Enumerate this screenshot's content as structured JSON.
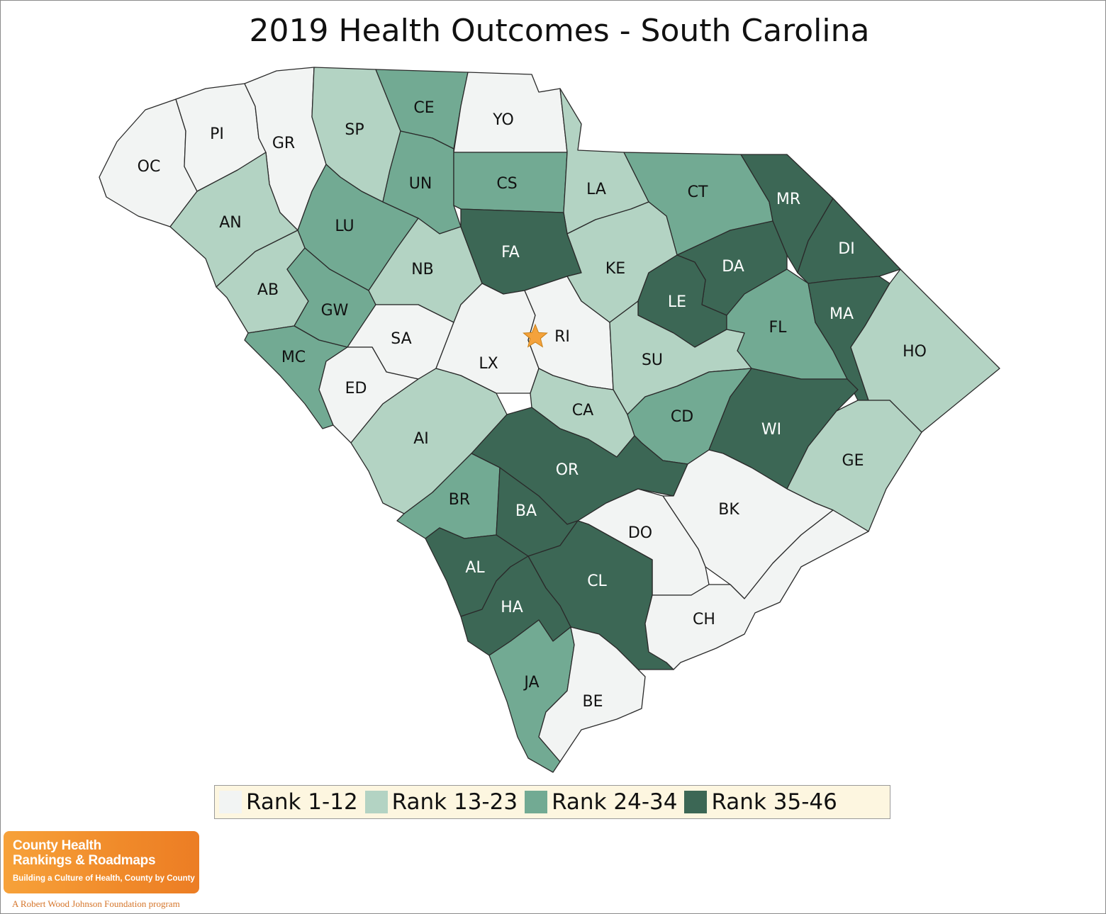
{
  "title": "2019 Health Outcomes - South Carolina",
  "colors": {
    "rank_1_12": "#f2f4f3",
    "rank_13_23": "#b3d3c3",
    "rank_24_34": "#72aa93",
    "rank_35_46": "#3c6755",
    "outline": "#2a2a2a",
    "legend_bg": "#fdf6e0",
    "capital_star": "#f4a23c"
  },
  "legend": [
    {
      "label": "Rank 1-12",
      "color": "#f2f4f3"
    },
    {
      "label": "Rank 13-23",
      "color": "#b3d3c3"
    },
    {
      "label": "Rank 24-34",
      "color": "#72aa93"
    },
    {
      "label": "Rank 35-46",
      "color": "#3c6755"
    }
  ],
  "capital": {
    "county": "RI",
    "icon": "star-icon"
  },
  "counties": [
    {
      "code": "OC",
      "rank_group": "Rank 1-12"
    },
    {
      "code": "PI",
      "rank_group": "Rank 1-12"
    },
    {
      "code": "GR",
      "rank_group": "Rank 1-12"
    },
    {
      "code": "SP",
      "rank_group": "Rank 13-23"
    },
    {
      "code": "CE",
      "rank_group": "Rank 24-34"
    },
    {
      "code": "YO",
      "rank_group": "Rank 1-12"
    },
    {
      "code": "AN",
      "rank_group": "Rank 13-23"
    },
    {
      "code": "LU",
      "rank_group": "Rank 24-34"
    },
    {
      "code": "UN",
      "rank_group": "Rank 24-34"
    },
    {
      "code": "CS",
      "rank_group": "Rank 24-34"
    },
    {
      "code": "LA",
      "rank_group": "Rank 13-23"
    },
    {
      "code": "CT",
      "rank_group": "Rank 24-34"
    },
    {
      "code": "MR",
      "rank_group": "Rank 35-46"
    },
    {
      "code": "AB",
      "rank_group": "Rank 13-23"
    },
    {
      "code": "GW",
      "rank_group": "Rank 24-34"
    },
    {
      "code": "NB",
      "rank_group": "Rank 13-23"
    },
    {
      "code": "FA",
      "rank_group": "Rank 35-46"
    },
    {
      "code": "KE",
      "rank_group": "Rank 13-23"
    },
    {
      "code": "DA",
      "rank_group": "Rank 35-46"
    },
    {
      "code": "DI",
      "rank_group": "Rank 35-46"
    },
    {
      "code": "MC",
      "rank_group": "Rank 24-34"
    },
    {
      "code": "SA",
      "rank_group": "Rank 1-12"
    },
    {
      "code": "LX",
      "rank_group": "Rank 1-12"
    },
    {
      "code": "RI",
      "rank_group": "Rank 1-12"
    },
    {
      "code": "LE",
      "rank_group": "Rank 35-46"
    },
    {
      "code": "FL",
      "rank_group": "Rank 24-34"
    },
    {
      "code": "MA",
      "rank_group": "Rank 35-46"
    },
    {
      "code": "HO",
      "rank_group": "Rank 13-23"
    },
    {
      "code": "ED",
      "rank_group": "Rank 1-12"
    },
    {
      "code": "SU",
      "rank_group": "Rank 13-23"
    },
    {
      "code": "AI",
      "rank_group": "Rank 13-23"
    },
    {
      "code": "CA",
      "rank_group": "Rank 13-23"
    },
    {
      "code": "CD",
      "rank_group": "Rank 24-34"
    },
    {
      "code": "WI",
      "rank_group": "Rank 35-46"
    },
    {
      "code": "OR",
      "rank_group": "Rank 35-46"
    },
    {
      "code": "GE",
      "rank_group": "Rank 13-23"
    },
    {
      "code": "BR",
      "rank_group": "Rank 24-34"
    },
    {
      "code": "BA",
      "rank_group": "Rank 35-46"
    },
    {
      "code": "BK",
      "rank_group": "Rank 1-12"
    },
    {
      "code": "DO",
      "rank_group": "Rank 1-12"
    },
    {
      "code": "AL",
      "rank_group": "Rank 35-46"
    },
    {
      "code": "CL",
      "rank_group": "Rank 35-46"
    },
    {
      "code": "HA",
      "rank_group": "Rank 35-46"
    },
    {
      "code": "CH",
      "rank_group": "Rank 1-12"
    },
    {
      "code": "JA",
      "rank_group": "Rank 24-34"
    },
    {
      "code": "BE",
      "rank_group": "Rank 1-12"
    }
  ],
  "logo": {
    "line1": "County Health",
    "line2": "Rankings & Roadmaps",
    "tagline": "Building a Culture of Health, County by County",
    "subtitle": "A Robert Wood Johnson Foundation program"
  }
}
